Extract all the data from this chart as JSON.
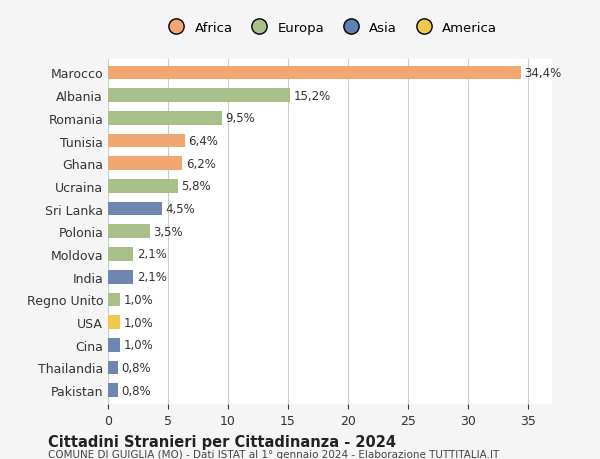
{
  "categories": [
    "Pakistan",
    "Thailandia",
    "Cina",
    "USA",
    "Regno Unito",
    "India",
    "Moldova",
    "Polonia",
    "Sri Lanka",
    "Ucraina",
    "Ghana",
    "Tunisia",
    "Romania",
    "Albania",
    "Marocco"
  ],
  "values": [
    0.8,
    0.8,
    1.0,
    1.0,
    1.0,
    2.1,
    2.1,
    3.5,
    4.5,
    5.8,
    6.2,
    6.4,
    9.5,
    15.2,
    34.4
  ],
  "colors": [
    "#6e86b0",
    "#6e86b0",
    "#6e86b0",
    "#f0c84e",
    "#a8bf8a",
    "#6e86b0",
    "#a8bf8a",
    "#a8bf8a",
    "#6e86b0",
    "#a8bf8a",
    "#f0a870",
    "#f0a870",
    "#a8bf8a",
    "#a8bf8a",
    "#f0a870"
  ],
  "labels": [
    "0,8%",
    "0,8%",
    "1,0%",
    "1,0%",
    "1,0%",
    "2,1%",
    "2,1%",
    "3,5%",
    "4,5%",
    "5,8%",
    "6,2%",
    "6,4%",
    "9,5%",
    "15,2%",
    "34,4%"
  ],
  "legend_names": [
    "Africa",
    "Europa",
    "Asia",
    "America"
  ],
  "legend_colors": [
    "#f0a870",
    "#a8bf8a",
    "#6080b0",
    "#f0c84e"
  ],
  "title": "Cittadini Stranieri per Cittadinanza - 2024",
  "subtitle": "COMUNE DI GUIGLIA (MO) - Dati ISTAT al 1° gennaio 2024 - Elaborazione TUTTITALIA.IT",
  "xlim": [
    0,
    37
  ],
  "background_color": "#f5f5f5",
  "plot_background": "#ffffff",
  "grid_color": "#cccccc"
}
